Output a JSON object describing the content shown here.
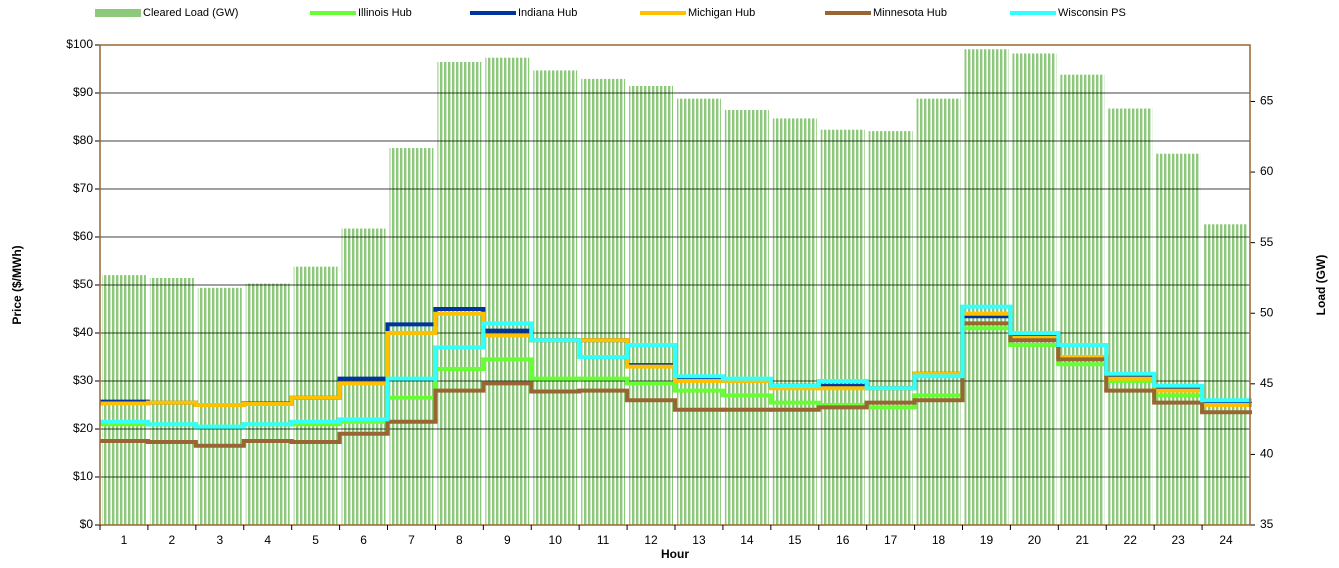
{
  "chart_data": {
    "type": "bar-line",
    "x_label": "Hour",
    "y_label": "Price ($/MWh)",
    "y2_label": "Load (GW)",
    "categories": [
      "1",
      "2",
      "3",
      "4",
      "5",
      "6",
      "7",
      "8",
      "9",
      "10",
      "11",
      "12",
      "13",
      "14",
      "15",
      "16",
      "17",
      "18",
      "19",
      "20",
      "21",
      "22",
      "23",
      "24"
    ],
    "ylim": [
      0,
      100
    ],
    "yticks": [
      {
        "value": 0,
        "label": "$0"
      },
      {
        "value": 10,
        "label": "$10"
      },
      {
        "value": 20,
        "label": "$20"
      },
      {
        "value": 30,
        "label": "$30"
      },
      {
        "value": 40,
        "label": "$40"
      },
      {
        "value": 50,
        "label": "$50"
      },
      {
        "value": 60,
        "label": "$60"
      },
      {
        "value": 70,
        "label": "$70"
      },
      {
        "value": 80,
        "label": "$80"
      },
      {
        "value": 90,
        "label": "$90"
      },
      {
        "value": 100,
        "label": "$100"
      }
    ],
    "y2lim": [
      35,
      69
    ],
    "y2ticks": [
      35,
      40,
      45,
      50,
      55,
      60,
      65
    ],
    "grid": true,
    "series": [
      {
        "name": "Cleared Load (GW)",
        "type": "bar",
        "axis": "y2",
        "color": "#8cc97a",
        "values": [
          52.7,
          52.5,
          51.8,
          52.1,
          53.3,
          56.0,
          61.7,
          67.8,
          68.1,
          67.2,
          66.6,
          66.1,
          65.2,
          64.4,
          63.8,
          63.0,
          62.9,
          65.2,
          68.7,
          68.4,
          66.9,
          64.5,
          61.3,
          56.3
        ]
      },
      {
        "name": "Illinois Hub",
        "type": "step",
        "color": "#66ff33",
        "values": [
          21,
          21,
          20.5,
          21,
          21,
          21.5,
          26.5,
          32.5,
          34.5,
          30.5,
          30.5,
          29.5,
          28,
          27,
          25.5,
          25,
          24.5,
          27,
          41,
          37.5,
          33.5,
          30,
          27,
          25
        ]
      },
      {
        "name": "Indiana Hub",
        "type": "step",
        "color": "#0033a0",
        "values": [
          25.7,
          25.5,
          25,
          25.3,
          26.5,
          30.5,
          41.8,
          45,
          40.5,
          38.5,
          38.5,
          33.3,
          30.5,
          30,
          29,
          29,
          28.5,
          31.5,
          43.5,
          39.5,
          35,
          31,
          28.5,
          25.5
        ]
      },
      {
        "name": "Michigan Hub",
        "type": "step",
        "color": "#ffc000",
        "values": [
          25.3,
          25.5,
          25,
          25.2,
          26.5,
          29.5,
          40,
          44,
          39.5,
          38.5,
          38.5,
          33,
          30,
          30,
          28.5,
          28.5,
          28.5,
          31.5,
          44,
          39,
          35,
          30.5,
          28,
          25
        ]
      },
      {
        "name": "Minnesota Hub",
        "type": "step",
        "color": "#996633",
        "values": [
          17.5,
          17.3,
          16.5,
          17.5,
          17.3,
          19,
          21.5,
          28,
          29.5,
          27.8,
          28,
          26,
          24,
          24,
          24,
          24.5,
          25.5,
          26,
          42,
          38.5,
          34.5,
          28,
          25.5,
          23.5
        ]
      },
      {
        "name": "Wisconsin PS",
        "type": "step",
        "color": "#33ffff",
        "values": [
          21.5,
          21,
          20.5,
          21,
          21.5,
          22,
          30.5,
          37,
          42,
          38.5,
          35,
          37.5,
          31,
          30.5,
          29,
          30,
          28.5,
          31,
          45.5,
          40,
          37.5,
          31.5,
          29,
          26
        ]
      }
    ]
  }
}
